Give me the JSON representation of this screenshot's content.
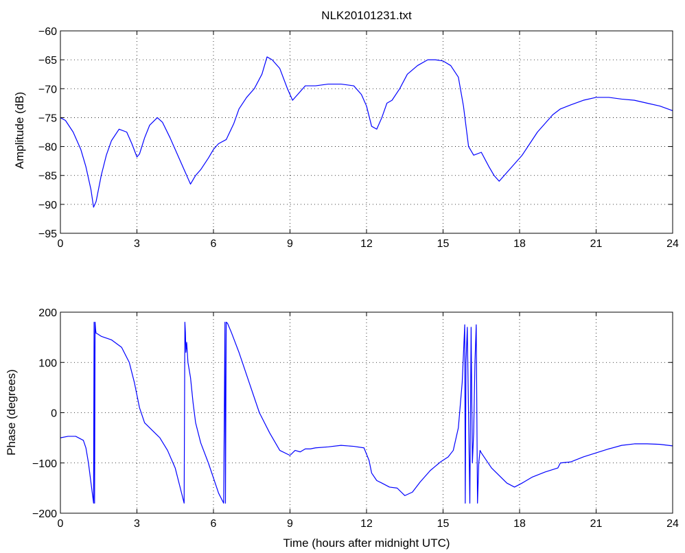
{
  "title": "NLK20101231.txt",
  "chart_data": [
    {
      "type": "line",
      "title": "NLK20101231.txt",
      "xlabel": "",
      "ylabel": "Amplitude (dB)",
      "xlim": [
        0,
        24
      ],
      "ylim": [
        -95,
        -60
      ],
      "xticks": [
        0,
        3,
        6,
        9,
        12,
        15,
        18,
        21,
        24
      ],
      "yticks": [
        -95,
        -90,
        -85,
        -80,
        -75,
        -70,
        -65,
        -60
      ],
      "grid": true,
      "line_color": "#0000ff",
      "series": [
        {
          "x": [
            0,
            0.2,
            0.5,
            0.8,
            1.0,
            1.2,
            1.3,
            1.4,
            1.6,
            1.8,
            2.0,
            2.3,
            2.6,
            2.8,
            3.0,
            3.1,
            3.3,
            3.5,
            3.8,
            4.0,
            4.3,
            4.6,
            4.9,
            5.0,
            5.1,
            5.3,
            5.5,
            5.8,
            6.0,
            6.2,
            6.5,
            6.8,
            7.0,
            7.3,
            7.6,
            7.9,
            8.1,
            8.3,
            8.6,
            8.9,
            9.1,
            9.3,
            9.6,
            10.0,
            10.5,
            11.0,
            11.5,
            11.8,
            12.0,
            12.2,
            12.4,
            12.6,
            12.8,
            13.0,
            13.3,
            13.6,
            14.0,
            14.4,
            14.7,
            15.0,
            15.3,
            15.6,
            15.8,
            16.0,
            16.2,
            16.5,
            16.8,
            17.0,
            17.2,
            17.5,
            17.8,
            18.1,
            18.4,
            18.7,
            19.0,
            19.3,
            19.6,
            20.0,
            20.5,
            21.0,
            21.5,
            22.0,
            22.5,
            23.0,
            23.5,
            24.0
          ],
          "values": [
            -75,
            -75.5,
            -77.5,
            -80.5,
            -83.5,
            -87.5,
            -90.5,
            -89.5,
            -85,
            -81.5,
            -79,
            -77,
            -77.5,
            -79.5,
            -81.8,
            -81.3,
            -78.5,
            -76.3,
            -75,
            -75.8,
            -78.5,
            -81.5,
            -84.5,
            -85.5,
            -86.5,
            -85,
            -84,
            -82,
            -80.5,
            -79.5,
            -78.8,
            -76,
            -73.5,
            -71.5,
            -70,
            -67.5,
            -64.5,
            -65,
            -66.5,
            -70,
            -72,
            -71,
            -69.5,
            -69.5,
            -69.2,
            -69.2,
            -69.5,
            -71,
            -73,
            -76.5,
            -77,
            -75,
            -72.5,
            -72,
            -70,
            -67.5,
            -66,
            -65,
            -65,
            -65.2,
            -66,
            -68,
            -73,
            -80,
            -81.5,
            -81,
            -83.5,
            -85,
            -86,
            -84.5,
            -83,
            -81.5,
            -79.5,
            -77.5,
            -76,
            -74.5,
            -73.5,
            -72.8,
            -72,
            -71.5,
            -71.5,
            -71.8,
            -72,
            -72.5,
            -73,
            -73.8
          ]
        }
      ]
    },
    {
      "type": "line",
      "title": "",
      "xlabel": "Time (hours after midnight UTC)",
      "ylabel": "Phase (degrees)",
      "xlim": [
        0,
        24
      ],
      "ylim": [
        -200,
        200
      ],
      "xticks": [
        0,
        3,
        6,
        9,
        12,
        15,
        18,
        21,
        24
      ],
      "yticks": [
        -200,
        -100,
        0,
        100,
        200
      ],
      "grid": true,
      "line_color": "#0000ff",
      "series": [
        {
          "x": [
            0,
            0.3,
            0.6,
            0.9,
            1.0,
            1.1,
            1.2,
            1.3,
            1.32,
            1.34,
            1.36,
            1.38,
            1.4,
            1.45,
            1.6,
            2.0,
            2.4,
            2.7,
            2.9,
            3.1,
            3.3,
            3.6,
            3.9,
            4.2,
            4.5,
            4.7,
            4.85,
            4.88,
            4.9,
            4.92,
            4.95,
            5.0,
            5.1,
            5.2,
            5.3,
            5.5,
            5.8,
            6.0,
            6.2,
            6.4,
            6.45,
            6.47,
            6.5,
            6.55,
            6.7,
            7.0,
            7.4,
            7.8,
            8.2,
            8.6,
            9.0,
            9.2,
            9.4,
            9.6,
            9.8,
            10.0,
            10.5,
            11.0,
            11.5,
            11.9,
            12.1,
            12.2,
            12.4,
            12.6,
            12.9,
            13.2,
            13.5,
            13.8,
            14.1,
            14.5,
            14.9,
            15.2,
            15.4,
            15.6,
            15.75,
            15.85,
            15.87,
            15.9,
            15.95,
            16.05,
            16.1,
            16.15,
            16.2,
            16.25,
            16.3,
            16.35,
            16.4,
            16.45,
            16.5,
            16.7,
            16.9,
            17.2,
            17.5,
            17.8,
            18.1,
            18.5,
            19.0,
            19.5,
            19.6,
            20.0,
            20.5,
            21.0,
            21.5,
            22.0,
            22.5,
            23.0,
            23.5,
            24.0
          ],
          "values": [
            -50,
            -47,
            -47,
            -55,
            -70,
            -100,
            -140,
            -180,
            180,
            -180,
            180,
            165,
            158,
            157,
            152,
            145,
            130,
            100,
            60,
            10,
            -20,
            -35,
            -50,
            -75,
            -110,
            -150,
            -180,
            180,
            160,
            120,
            140,
            100,
            70,
            20,
            -20,
            -60,
            -100,
            -130,
            -160,
            -180,
            180,
            -180,
            180,
            178,
            160,
            120,
            60,
            0,
            -40,
            -75,
            -85,
            -75,
            -78,
            -72,
            -72,
            -70,
            -68,
            -65,
            -67,
            -70,
            -95,
            -120,
            -135,
            -140,
            -148,
            -150,
            -165,
            -158,
            -138,
            -115,
            -98,
            -88,
            -75,
            -30,
            60,
            175,
            -180,
            100,
            170,
            -180,
            170,
            -100,
            -40,
            100,
            175,
            -180,
            -100,
            -75,
            -80,
            -95,
            -110,
            -125,
            -140,
            -148,
            -140,
            -128,
            -118,
            -110,
            -100,
            -98,
            -88,
            -80,
            -72,
            -65,
            -62,
            -62,
            -63,
            -66
          ]
        }
      ]
    }
  ]
}
